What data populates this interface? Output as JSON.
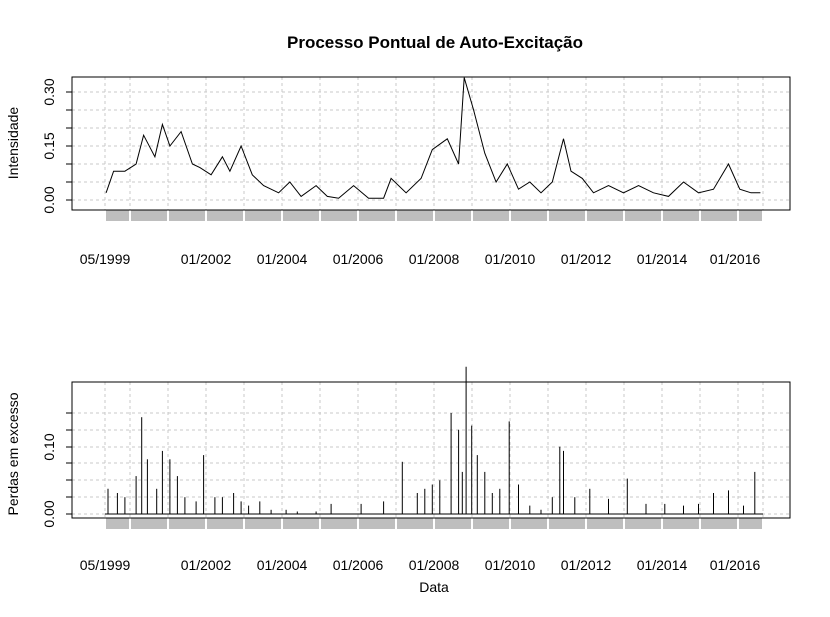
{
  "title": "Processo Pontual de Auto-Excitação",
  "xlabel": "Data",
  "date_tick_labels": [
    "05/1999",
    "01/2002",
    "01/2004",
    "01/2006",
    "01/2008",
    "01/2010",
    "01/2012",
    "01/2014",
    "01/2016"
  ],
  "chart_data": [
    {
      "type": "line",
      "ylabel": "Intensidade",
      "ylim": [
        0,
        0.35
      ],
      "yticks": [
        "0.00",
        "0.15",
        "0.30"
      ],
      "grid": true,
      "x_unit": "year",
      "x": [
        1999.4,
        1999.6,
        1999.9,
        2000.2,
        2000.4,
        2000.7,
        2000.9,
        2001.1,
        2001.4,
        2001.7,
        2001.9,
        2002.2,
        2002.5,
        2002.7,
        2003.0,
        2003.3,
        2003.6,
        2004.0,
        2004.3,
        2004.6,
        2005.0,
        2005.3,
        2005.6,
        2006.0,
        2006.4,
        2006.8,
        2007.0,
        2007.4,
        2007.8,
        2008.1,
        2008.5,
        2008.8,
        2008.95,
        2009.2,
        2009.5,
        2009.8,
        2010.1,
        2010.4,
        2010.7,
        2011.0,
        2011.3,
        2011.6,
        2011.8,
        2012.1,
        2012.4,
        2012.8,
        2013.2,
        2013.6,
        2014.0,
        2014.4,
        2014.8,
        2015.2,
        2015.6,
        2016.0,
        2016.3,
        2016.6,
        2016.85
      ],
      "y": [
        0.02,
        0.08,
        0.08,
        0.1,
        0.18,
        0.12,
        0.21,
        0.15,
        0.19,
        0.1,
        0.09,
        0.07,
        0.12,
        0.08,
        0.15,
        0.07,
        0.04,
        0.02,
        0.05,
        0.01,
        0.04,
        0.01,
        0.005,
        0.04,
        0.005,
        0.005,
        0.06,
        0.02,
        0.06,
        0.14,
        0.17,
        0.1,
        0.34,
        0.25,
        0.13,
        0.05,
        0.1,
        0.03,
        0.05,
        0.02,
        0.05,
        0.17,
        0.08,
        0.06,
        0.02,
        0.04,
        0.02,
        0.04,
        0.02,
        0.01,
        0.05,
        0.02,
        0.03,
        0.1,
        0.03,
        0.02,
        0.02
      ]
    },
    {
      "type": "bar",
      "ylabel": "Perdas em excesso",
      "ylim": [
        0,
        0.18
      ],
      "yticks": [
        "0.00",
        "0.10"
      ],
      "grid": true,
      "x_unit": "year",
      "x": [
        1999.45,
        1999.7,
        1999.9,
        2000.2,
        2000.35,
        2000.5,
        2000.75,
        2000.9,
        2001.1,
        2001.3,
        2001.5,
        2001.8,
        2002.0,
        2002.3,
        2002.5,
        2002.8,
        2003.0,
        2003.2,
        2003.5,
        2003.8,
        2004.2,
        2004.5,
        2005.0,
        2005.4,
        2006.2,
        2006.8,
        2007.3,
        2007.7,
        2007.9,
        2008.1,
        2008.3,
        2008.6,
        2008.8,
        2008.9,
        2009.0,
        2009.15,
        2009.3,
        2009.5,
        2009.7,
        2009.9,
        2010.15,
        2010.4,
        2010.7,
        2011.0,
        2011.3,
        2011.5,
        2011.6,
        2011.9,
        2012.3,
        2012.8,
        2013.3,
        2013.8,
        2014.3,
        2014.8,
        2015.2,
        2015.6,
        2016.0,
        2016.4,
        2016.7
      ],
      "y": [
        0.03,
        0.025,
        0.02,
        0.045,
        0.115,
        0.065,
        0.03,
        0.075,
        0.065,
        0.045,
        0.02,
        0.015,
        0.07,
        0.02,
        0.02,
        0.025,
        0.015,
        0.01,
        0.015,
        0.005,
        0.005,
        0.003,
        0.003,
        0.012,
        0.012,
        0.015,
        0.062,
        0.025,
        0.03,
        0.035,
        0.04,
        0.12,
        0.1,
        0.05,
        0.175,
        0.105,
        0.07,
        0.05,
        0.025,
        0.03,
        0.11,
        0.035,
        0.01,
        0.005,
        0.02,
        0.08,
        0.075,
        0.02,
        0.03,
        0.018,
        0.042,
        0.012,
        0.012,
        0.01,
        0.012,
        0.025,
        0.028,
        0.01,
        0.05
      ]
    }
  ]
}
